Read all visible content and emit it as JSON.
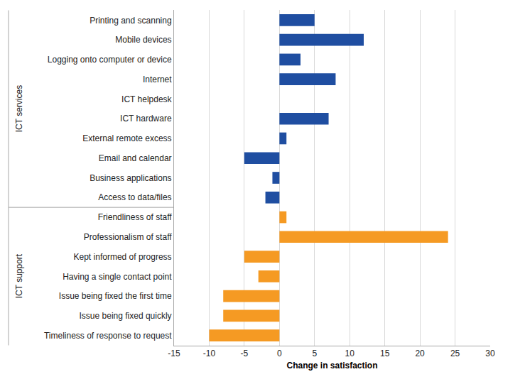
{
  "chart_data": {
    "type": "bar",
    "orientation": "horizontal",
    "xlabel": "Change in satisfaction",
    "categories": [
      "Printing and scanning",
      "Mobile devices",
      "Logging onto computer or device",
      "Internet",
      "ICT helpdesk",
      "ICT hardware",
      "External remote excess",
      "Email and calendar",
      "Business applications",
      "Access to data/files",
      "Friendliness of staff",
      "Professionalism of staff",
      "Kept informed of progress",
      "Having a single contact point",
      "Issue being fixed the first time",
      "Issue being fixed quickly",
      "Timeliness of response to request"
    ],
    "series": [
      {
        "name": "ICT services",
        "color": "#1f4ea1",
        "values": [
          5,
          12,
          3,
          8,
          0,
          7,
          1,
          -5,
          -1,
          -2,
          null,
          null,
          null,
          null,
          null,
          null,
          null
        ]
      },
      {
        "name": "ICT support",
        "color": "#f59a23",
        "values": [
          null,
          null,
          null,
          null,
          null,
          null,
          null,
          null,
          null,
          null,
          1,
          24,
          -5,
          -3,
          -8,
          -8,
          -10
        ]
      }
    ],
    "xlim": [
      -15,
      30
    ],
    "xticks": [
      -15,
      -10,
      -5,
      0,
      5,
      10,
      15,
      20,
      25,
      30
    ],
    "grid": true
  }
}
